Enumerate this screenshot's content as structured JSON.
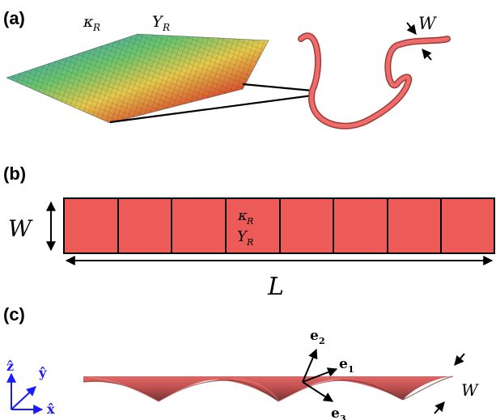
{
  "panels": {
    "a": {
      "label": "(a)",
      "kappa_text": "κR",
      "young_text": "YR",
      "width_text": "W"
    },
    "b": {
      "label": "(b)",
      "width_text": "W",
      "length_text": "L",
      "kappa_text": "κR",
      "young_text": "YR"
    },
    "c": {
      "label": "(c)",
      "e1": "e1",
      "e2": "e2",
      "e3": "e3",
      "width_text": "W",
      "axes": {
        "z": "ẑ",
        "y": "ŷ",
        "x": "x̂"
      }
    }
  },
  "colors": {
    "ribbon": "#ec5b58",
    "ribbon_dark": "#9a3b3b",
    "outline": "#000000",
    "axis": "#1a1aff"
  }
}
